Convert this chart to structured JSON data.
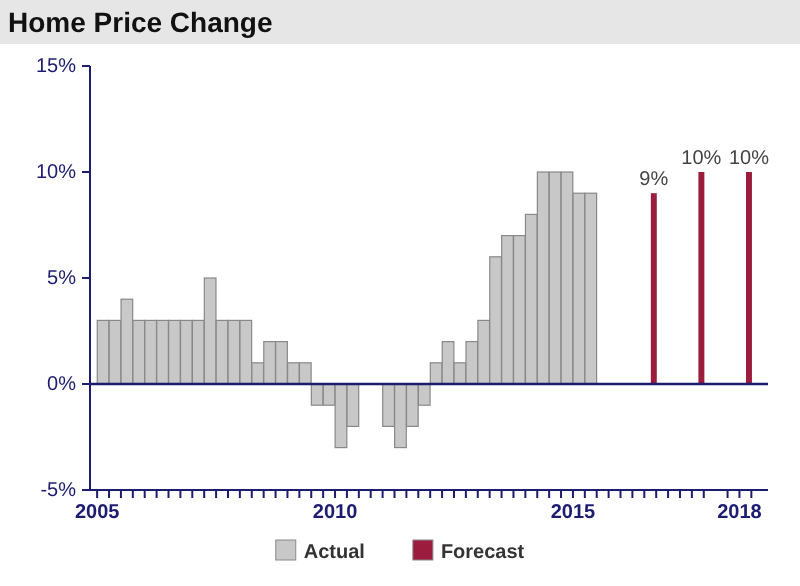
{
  "chart_data": {
    "type": "bar",
    "title": "Home Price Change",
    "xlim": [
      2004.85,
      2019.1
    ],
    "xticks": [
      2005,
      {
        "value": 2005.25,
        "label": null
      },
      {
        "value": 2005.5,
        "label": null
      },
      {
        "value": 2005.75,
        "label": null
      },
      {
        "value": 2006,
        "label": null
      },
      {
        "value": 2006.25,
        "label": null
      },
      {
        "value": 2006.5,
        "label": null
      },
      {
        "value": 2006.75,
        "label": null
      },
      {
        "value": 2007,
        "label": null
      },
      {
        "value": 2007.25,
        "label": null
      },
      {
        "value": 2007.5,
        "label": null
      },
      {
        "value": 2007.75,
        "label": null
      },
      {
        "value": 2008,
        "label": null
      },
      {
        "value": 2008.25,
        "label": null
      },
      {
        "value": 2008.5,
        "label": null
      },
      {
        "value": 2008.75,
        "label": null
      },
      {
        "value": 2009,
        "label": null
      },
      {
        "value": 2009.25,
        "label": null
      },
      {
        "value": 2009.5,
        "label": null
      },
      {
        "value": 2009.75,
        "label": null
      },
      2010,
      {
        "value": 2010.25,
        "label": null
      },
      {
        "value": 2010.5,
        "label": null
      },
      {
        "value": 2010.75,
        "label": null
      },
      {
        "value": 2011,
        "label": null
      },
      {
        "value": 2011.25,
        "label": null
      },
      {
        "value": 2011.5,
        "label": null
      },
      {
        "value": 2011.75,
        "label": null
      },
      {
        "value": 2012,
        "label": null
      },
      {
        "value": 2012.25,
        "label": null
      },
      {
        "value": 2012.5,
        "label": null
      },
      {
        "value": 2012.75,
        "label": null
      },
      {
        "value": 2013,
        "label": null
      },
      {
        "value": 2013.25,
        "label": null
      },
      {
        "value": 2013.5,
        "label": null
      },
      {
        "value": 2013.75,
        "label": null
      },
      {
        "value": 2014,
        "label": null
      },
      {
        "value": 2014.25,
        "label": null
      },
      {
        "value": 2014.5,
        "label": null
      },
      {
        "value": 2014.75,
        "label": null
      },
      2015,
      {
        "value": 2015.25,
        "label": null
      },
      {
        "value": 2015.5,
        "label": null
      },
      {
        "value": 2015.75,
        "label": null
      },
      {
        "value": 2016,
        "label": null
      },
      {
        "value": 2016.25,
        "label": null
      },
      {
        "value": 2016.5,
        "label": null
      },
      {
        "value": 2016.75,
        "label": null
      },
      {
        "value": 2017,
        "label": null
      },
      {
        "value": 2017.25,
        "label": null
      },
      {
        "value": 2017.5,
        "label": null
      },
      {
        "value": 2017.75,
        "label": null
      },
      {
        "value": 2018.5,
        "label": "2018"
      },
      {
        "value": 2018.25,
        "label": null
      },
      {
        "value": 2018.75,
        "label": null
      }
    ],
    "ylim": [
      -5,
      15
    ],
    "yticks": [
      {
        "value": -5,
        "label": "-5%"
      },
      {
        "value": 0,
        "label": "0%"
      },
      {
        "value": 5,
        "label": "5%"
      },
      {
        "value": 10,
        "label": "10%"
      },
      {
        "value": 15,
        "label": "15%"
      }
    ],
    "ref_lines": [
      {
        "axis": "y",
        "value": 0,
        "color": "#1c1c70"
      }
    ],
    "legend": "bottom",
    "series": [
      {
        "name": "Actual",
        "color": "#c8c8c8",
        "x": [
          2005.125,
          2005.375,
          2005.625,
          2005.875,
          2006.125,
          2006.375,
          2006.625,
          2006.875,
          2007.125,
          2007.375,
          2007.625,
          2007.875,
          2008.125,
          2008.375,
          2008.625,
          2008.875,
          2009.125,
          2009.375,
          2009.625,
          2009.875,
          2010.125,
          2010.375,
          2010.625,
          2010.875,
          2011.125,
          2011.375,
          2011.625,
          2011.875,
          2012.125,
          2012.375,
          2012.625,
          2012.875,
          2013.125,
          2013.375,
          2013.625,
          2013.875,
          2014.125,
          2014.375,
          2014.625,
          2014.875,
          2015.125,
          2015.375
        ],
        "values": [
          3,
          3,
          4,
          3,
          3,
          3,
          3,
          3,
          3,
          5,
          3,
          3,
          3,
          1,
          2,
          2,
          1,
          1,
          -1,
          -1,
          -3,
          -2,
          0,
          0,
          -2,
          -3,
          -2,
          -1,
          1,
          2,
          1,
          2,
          3,
          6,
          7,
          7,
          8,
          10,
          10,
          10,
          9,
          9
        ]
      },
      {
        "name": "Forecast",
        "color": "#9b1c3c",
        "x": [
          2016.7,
          2017.7,
          2018.7
        ],
        "values": [
          9,
          10,
          10
        ],
        "value_labels": [
          "9%",
          "10%",
          "10%"
        ]
      }
    ]
  }
}
